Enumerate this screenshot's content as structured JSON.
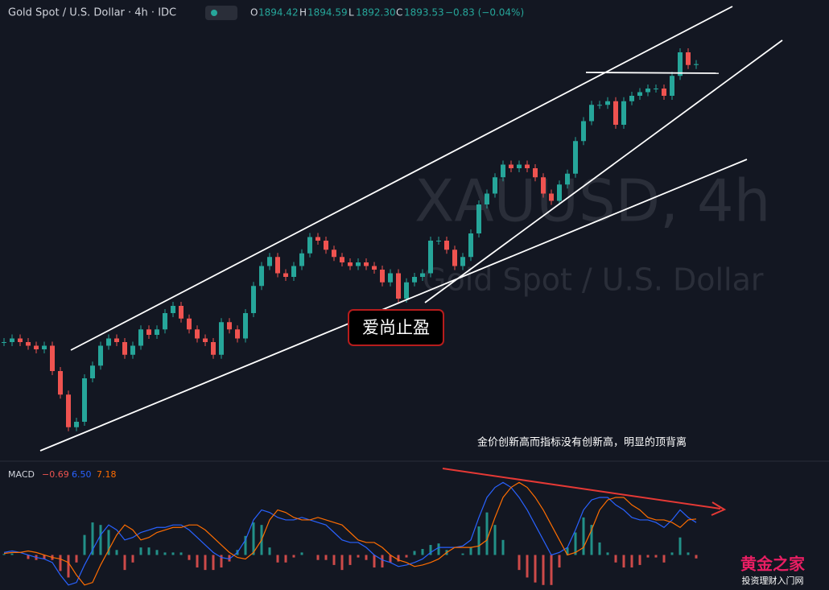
{
  "chart_data": [
    {
      "type": "candlestick",
      "title": "Gold Spot / U.S. Dollar · 4h · IDC",
      "ohlc_labels": [
        "O",
        "H",
        "L",
        "C"
      ],
      "ohlc_values": [
        "1894.42",
        "1894.59",
        "1892.30",
        "1893.53"
      ],
      "change": "−0.83 (−0.04%)",
      "watermark": [
        "XAUUSD, 4h",
        "Gold Spot / U.S. Dollar"
      ],
      "up_color": "#26a69a",
      "down_color": "#ef5350",
      "ylim": [
        1680,
        1920
      ],
      "values": [
        1740,
        1742,
        1740,
        1738,
        1736,
        1738,
        1724,
        1711,
        1693,
        1696,
        1720,
        1727,
        1738,
        1742,
        1740,
        1733,
        1738,
        1747,
        1744,
        1747,
        1756,
        1760,
        1753,
        1747,
        1742,
        1740,
        1733,
        1751,
        1747,
        1742,
        1756,
        1771,
        1782,
        1787,
        1778,
        1776,
        1782,
        1789,
        1798,
        1796,
        1791,
        1787,
        1784,
        1782,
        1784,
        1782,
        1780,
        1773,
        1778,
        1764,
        1773,
        1776,
        1778,
        1796,
        1796,
        1791,
        1782,
        1787,
        1800,
        1816,
        1822,
        1831,
        1838,
        1836,
        1838,
        1836,
        1831,
        1822,
        1818,
        1827,
        1833,
        1851,
        1862,
        1871,
        1871,
        1873,
        1860,
        1873,
        1876,
        1878,
        1880,
        1880,
        1876,
        1887,
        1900,
        1893,
        1893.5
      ],
      "annotations": [
        "爱尚止盈",
        "金价创新高而指标没有创新高，明显的顶背离"
      ]
    },
    {
      "type": "macd",
      "title": "MACD",
      "header_values": [
        "−0.69",
        "6.50",
        "7.18"
      ],
      "ylim": [
        -7,
        16
      ],
      "series": [
        {
          "name": "histogram",
          "color": "#ef5350",
          "up_color": "#26a69a",
          "values": [
            0.2,
            0.3,
            0,
            -0.8,
            -1,
            -0.8,
            -1,
            -3.2,
            -4.5,
            -1.5,
            4,
            6.5,
            6,
            5,
            1,
            -3,
            -1.5,
            1.5,
            1.5,
            1,
            0.5,
            0.5,
            0.5,
            -1,
            -2.5,
            -3,
            -3,
            -2.5,
            -1.3,
            1,
            3.8,
            6.5,
            6,
            1.5,
            -1.5,
            -1.5,
            -0.5,
            0.5,
            0,
            -1,
            -1,
            -2,
            -3,
            -2,
            -0.5,
            -1,
            -2.5,
            -2.5,
            -1.5,
            -1.3,
            -0.5,
            0.8,
            1.2,
            2,
            2.3,
            1,
            0,
            0.3,
            1.5,
            5.7,
            8.5,
            6,
            3,
            0,
            -3,
            -4.5,
            -5.5,
            -6,
            -6,
            -2.5,
            1.5,
            4.5,
            7.5,
            6,
            2.5,
            0.5,
            -1.5,
            -2.5,
            -2.5,
            -2,
            -0.5,
            -0.5,
            -1.5,
            0.5,
            3.5,
            0.5,
            -0.69
          ]
        },
        {
          "name": "macd",
          "color": "#2962ff",
          "values": [
            0.5,
            0.8,
            0.5,
            0,
            -0.5,
            -0.8,
            -1.5,
            -4,
            -6,
            -5.5,
            -2,
            1,
            4,
            6,
            5,
            3,
            3.5,
            4.5,
            5,
            5.5,
            5.5,
            6,
            6,
            5,
            3.5,
            2,
            0.5,
            -0.5,
            -0.8,
            0.5,
            3,
            7,
            9,
            8.5,
            7.5,
            7,
            7,
            7.5,
            7,
            6.5,
            6,
            4.5,
            3,
            2.5,
            2.5,
            1.5,
            0,
            -1,
            -1.5,
            -2.3,
            -2,
            -1.5,
            -0.8,
            0.5,
            1.5,
            1.5,
            1.5,
            1.8,
            3,
            7.5,
            11.5,
            13.5,
            14.5,
            13.5,
            11.5,
            9,
            6,
            3,
            0,
            0.5,
            1.5,
            5,
            9,
            11,
            11.5,
            11.5,
            10,
            9,
            7.5,
            7,
            7,
            6.5,
            5.5,
            7,
            9,
            7.5,
            6.5
          ]
        },
        {
          "name": "signal",
          "color": "#ff6d00",
          "values": [
            0.3,
            0.5,
            0.5,
            0.8,
            0.5,
            0,
            -0.5,
            -0.8,
            -1.5,
            -4,
            -6,
            -5.5,
            -2,
            1,
            4,
            6,
            5,
            3,
            3.5,
            4.5,
            5,
            5.5,
            5.5,
            6,
            6,
            5,
            3.5,
            2,
            0.5,
            -0.5,
            -0.8,
            0.5,
            3,
            7,
            9,
            8.5,
            7.5,
            7,
            7,
            7.5,
            7,
            6.5,
            6,
            4.5,
            3,
            2.5,
            2.5,
            1.5,
            0,
            -1,
            -1.5,
            -2.3,
            -2,
            -1.5,
            -0.8,
            0.5,
            1.5,
            1.5,
            1.5,
            1.8,
            3,
            7.5,
            11.5,
            13.5,
            14.5,
            13.5,
            11.5,
            9,
            6,
            3,
            0,
            0.5,
            1.5,
            5,
            9,
            11,
            11.5,
            11.5,
            10,
            9,
            7.5,
            7,
            7,
            6.5,
            5.5,
            7,
            7.18
          ]
        }
      ]
    },
    {
      "type": "logo",
      "texts": [
        "黄金之家",
        "投资理财入门网"
      ]
    }
  ]
}
